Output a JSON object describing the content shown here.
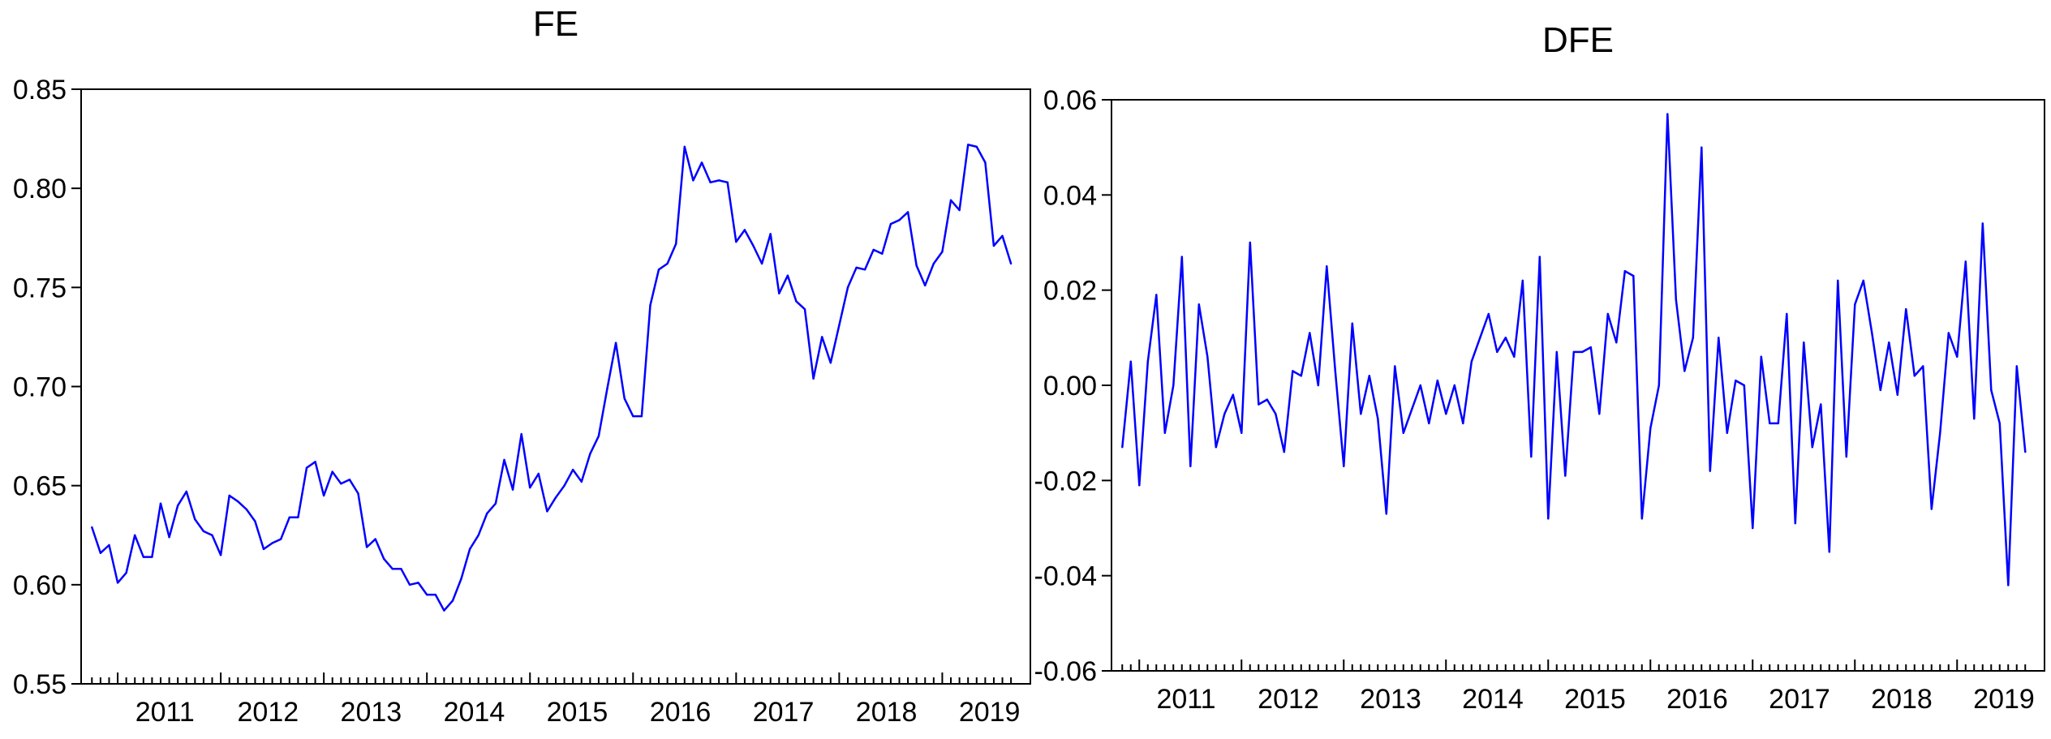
{
  "colors": {
    "line": "#0000ff",
    "axis": "#000000",
    "background": "#ffffff"
  },
  "chart_data": [
    {
      "type": "line",
      "title": "FE",
      "xlabel": "",
      "ylabel": "",
      "grid": false,
      "x_tick_labels": [
        "2011",
        "2012",
        "2013",
        "2014",
        "2015",
        "2016",
        "2017",
        "2018",
        "2019"
      ],
      "y_tick_labels": [
        "0.55",
        "0.60",
        "0.65",
        "0.70",
        "0.75",
        "0.80",
        "0.85"
      ],
      "ylim": [
        0.55,
        0.85
      ],
      "x_start": "2010-10",
      "frequency": "monthly",
      "series": [
        {
          "values": [
            0.629,
            0.616,
            0.62,
            0.601,
            0.606,
            0.625,
            0.614,
            0.614,
            0.641,
            0.624,
            0.64,
            0.647,
            0.633,
            0.627,
            0.625,
            0.615,
            0.645,
            0.642,
            0.638,
            0.632,
            0.618,
            0.621,
            0.623,
            0.634,
            0.634,
            0.659,
            0.662,
            0.645,
            0.657,
            0.651,
            0.653,
            0.646,
            0.619,
            0.623,
            0.613,
            0.608,
            0.608,
            0.6,
            0.601,
            0.595,
            0.595,
            0.587,
            0.592,
            0.603,
            0.618,
            0.625,
            0.636,
            0.641,
            0.663,
            0.648,
            0.676,
            0.649,
            0.656,
            0.637,
            0.644,
            0.65,
            0.658,
            0.652,
            0.666,
            0.675,
            0.699,
            0.722,
            0.694,
            0.685,
            0.685,
            0.741,
            0.759,
            0.762,
            0.772,
            0.821,
            0.804,
            0.813,
            0.803,
            0.804,
            0.803,
            0.773,
            0.779,
            0.771,
            0.762,
            0.777,
            0.747,
            0.756,
            0.743,
            0.739,
            0.704,
            0.725,
            0.712,
            0.731,
            0.75,
            0.76,
            0.759,
            0.769,
            0.767,
            0.782,
            0.784,
            0.788,
            0.761,
            0.751,
            0.762,
            0.768,
            0.794,
            0.789,
            0.822,
            0.821,
            0.813,
            0.771,
            0.776,
            0.762
          ]
        }
      ]
    },
    {
      "type": "line",
      "title": "DFE",
      "xlabel": "",
      "ylabel": "",
      "grid": false,
      "x_tick_labels": [
        "2011",
        "2012",
        "2013",
        "2014",
        "2015",
        "2016",
        "2017",
        "2018",
        "2019"
      ],
      "y_tick_labels": [
        "-0.06",
        "-0.04",
        "-0.02",
        "0.00",
        "0.02",
        "0.04",
        "0.06"
      ],
      "ylim": [
        -0.06,
        0.06
      ],
      "x_start": "2010-11",
      "frequency": "monthly",
      "series": [
        {
          "values": [
            -0.013,
            0.005,
            -0.021,
            0.005,
            0.019,
            -0.01,
            0.0,
            0.027,
            -0.017,
            0.017,
            0.006,
            -0.013,
            -0.006,
            -0.002,
            -0.01,
            0.03,
            -0.004,
            -0.003,
            -0.006,
            -0.014,
            0.003,
            0.002,
            0.011,
            0.0,
            0.025,
            0.003,
            -0.017,
            0.013,
            -0.006,
            0.002,
            -0.007,
            -0.027,
            0.004,
            -0.01,
            -0.005,
            0.0,
            -0.008,
            0.001,
            -0.006,
            0.0,
            -0.008,
            0.005,
            0.01,
            0.015,
            0.007,
            0.01,
            0.006,
            0.022,
            -0.015,
            0.027,
            -0.028,
            0.007,
            -0.019,
            0.007,
            0.007,
            0.008,
            -0.006,
            0.015,
            0.009,
            0.024,
            0.023,
            -0.028,
            -0.009,
            0.0,
            0.057,
            0.018,
            0.003,
            0.01,
            0.05,
            -0.018,
            0.01,
            -0.01,
            0.001,
            0.0,
            -0.03,
            0.006,
            -0.008,
            -0.008,
            0.015,
            -0.029,
            0.009,
            -0.013,
            -0.004,
            -0.035,
            0.022,
            -0.015,
            0.017,
            0.022,
            0.011,
            -0.001,
            0.009,
            -0.002,
            0.016,
            0.002,
            0.004,
            -0.026,
            -0.01,
            0.011,
            0.006,
            0.026,
            -0.007,
            0.034,
            -0.001,
            -0.008,
            -0.042,
            0.004,
            -0.014
          ]
        }
      ]
    }
  ]
}
